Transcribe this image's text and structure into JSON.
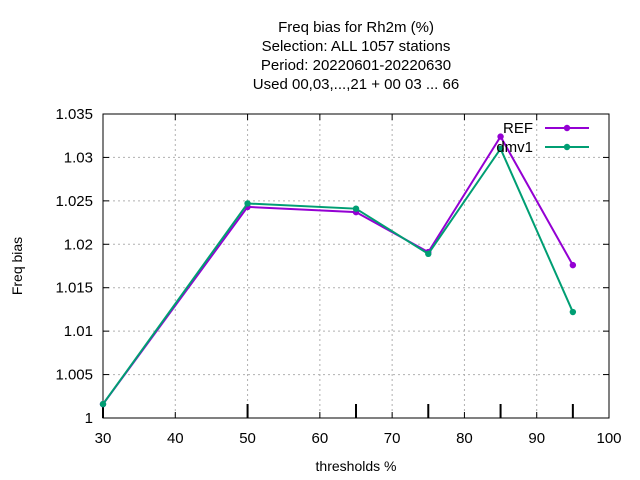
{
  "chart_data": {
    "type": "line",
    "title_lines": [
      "Freq bias  for Rh2m (%)",
      "Selection: ALL   1057 stations",
      "Period: 20220601-20220630",
      "Used  00,03,...,21  + 00 03 ... 66"
    ],
    "xlabel": "thresholds %",
    "ylabel": "Freq bias",
    "xlim": [
      30,
      100
    ],
    "ylim": [
      1,
      1.035
    ],
    "xticks": [
      30,
      40,
      50,
      60,
      70,
      80,
      90,
      100
    ],
    "xtick_labels": [
      "30",
      "40",
      "50",
      "60",
      "70",
      "80",
      "90",
      "100"
    ],
    "yticks": [
      1,
      1.005,
      1.01,
      1.015,
      1.02,
      1.025,
      1.03,
      1.035
    ],
    "ytick_labels": [
      "1",
      "1.005",
      "1.01",
      "1.015",
      "1.02",
      "1.025",
      "1.03",
      "1.035"
    ],
    "grid": true,
    "legend_position": "top-right",
    "x": [
      30,
      50,
      65,
      75,
      85,
      95
    ],
    "series": [
      {
        "name": "REF",
        "color": "#9400d3",
        "values": [
          1.0016,
          1.0243,
          1.0237,
          1.0191,
          1.0324,
          1.0176
        ]
      },
      {
        "name": "dmv1",
        "color": "#009e73",
        "values": [
          1.0016,
          1.0247,
          1.0241,
          1.0189,
          1.031,
          1.0122
        ]
      }
    ]
  }
}
